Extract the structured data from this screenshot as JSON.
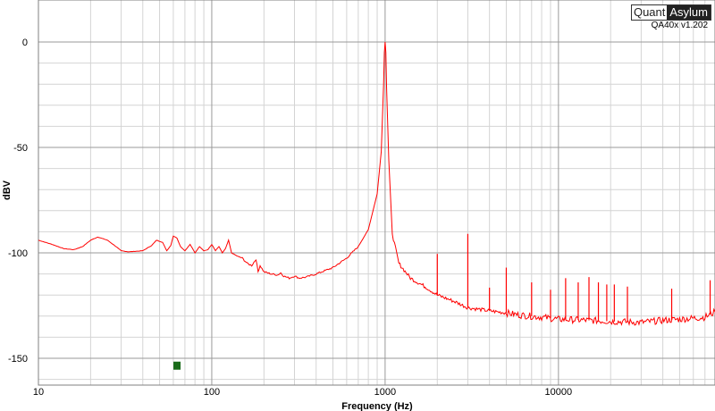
{
  "branding": {
    "logo_part1": "Quant",
    "logo_part2": "Asylum",
    "version": "QA40x v1.202"
  },
  "chart_data": {
    "type": "line",
    "xscale": "log",
    "xlim": [
      10,
      80000
    ],
    "ylim": [
      -160,
      10
    ],
    "xlabel": "Frequency (Hz)",
    "ylabel": "dBV",
    "x_ticks": [
      10,
      100,
      1000,
      10000
    ],
    "x_tick_labels": [
      "10",
      "100",
      "1000",
      "10000"
    ],
    "y_ticks": [
      0,
      -50,
      -100,
      -150
    ],
    "y_tick_labels": [
      "0",
      "-50",
      "-100",
      "-150"
    ],
    "grid": true,
    "series": [
      {
        "color": "#ff0000",
        "x": [
          10,
          12,
          14,
          16,
          18,
          20,
          22,
          25,
          28,
          30,
          33,
          36,
          40,
          45,
          48,
          52,
          55,
          58,
          60,
          63,
          66,
          70,
          75,
          80,
          85,
          90,
          95,
          100,
          105,
          110,
          115,
          120,
          125,
          130,
          140,
          150,
          160,
          170,
          180,
          185,
          190,
          200,
          220,
          240,
          250,
          260,
          280,
          300,
          320,
          350,
          400,
          500,
          600,
          700,
          800,
          900,
          950,
          980,
          990,
          1000,
          1010,
          1020,
          1050,
          1100,
          1200,
          1400,
          1700,
          2000,
          2500,
          3000,
          4000,
          5000,
          6000,
          8000,
          10000,
          15000,
          20000,
          30000,
          40000,
          50000,
          60000,
          70000,
          80000
        ],
        "y": [
          -94,
          -96,
          -98,
          -98.5,
          -97,
          -94,
          -92.5,
          -94,
          -97,
          -99,
          -99.5,
          -99.3,
          -99,
          -96.5,
          -94,
          -95,
          -99,
          -96.5,
          -92,
          -93,
          -97,
          -99,
          -96,
          -100,
          -97,
          -99,
          -98.5,
          -96,
          -99,
          -97,
          -100,
          -98,
          -94,
          -100,
          -101.5,
          -102.5,
          -105,
          -106,
          -103,
          -109,
          -106,
          -109,
          -110,
          -110.5,
          -109.5,
          -111,
          -112,
          -111,
          -112,
          -111.5,
          -110,
          -107,
          -102.5,
          -97,
          -89,
          -72,
          -52,
          -20,
          -5,
          0,
          -5,
          -22,
          -56,
          -91,
          -105,
          -112,
          -116,
          -120,
          -123,
          -126,
          -127.5,
          -128.5,
          -129.5,
          -130.5,
          -131.5,
          -132,
          -132.5,
          -133,
          -132,
          -131.5,
          -131,
          -130.5,
          -128
        ]
      }
    ],
    "spurs": [
      {
        "x": 2000,
        "y": -100.5
      },
      {
        "x": 3000,
        "y": -91
      },
      {
        "x": 4000,
        "y": -116.5
      },
      {
        "x": 5000,
        "y": -107
      },
      {
        "x": 7000,
        "y": -114
      },
      {
        "x": 9000,
        "y": -117.5
      },
      {
        "x": 11000,
        "y": -112
      },
      {
        "x": 13000,
        "y": -114
      },
      {
        "x": 15000,
        "y": -111.5
      },
      {
        "x": 17000,
        "y": -114
      },
      {
        "x": 19000,
        "y": -115
      },
      {
        "x": 21000,
        "y": -115
      },
      {
        "x": 25000,
        "y": -116
      },
      {
        "x": 45000,
        "y": -117
      },
      {
        "x": 75000,
        "y": -113
      }
    ],
    "marker": {
      "x": 63,
      "y": -153.5,
      "color": "#1a6b1a"
    }
  }
}
